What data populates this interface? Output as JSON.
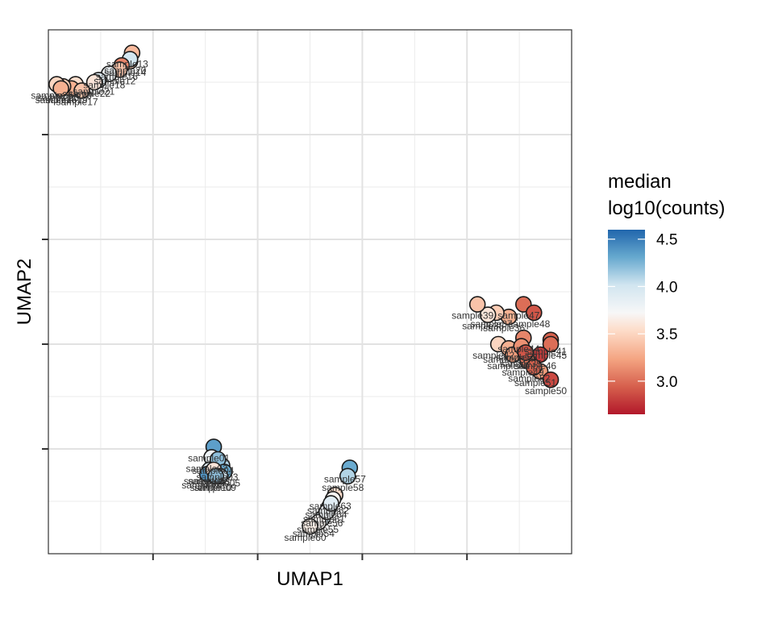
{
  "chart_data": {
    "type": "scatter",
    "title": "",
    "xlabel": "UMAP1",
    "ylabel": "UMAP2",
    "xlim": [
      -5,
      20
    ],
    "ylim": [
      -5,
      20
    ],
    "x_ticks": [
      0,
      5,
      10,
      15
    ],
    "y_ticks": [
      0,
      5,
      10,
      15
    ],
    "grid": true,
    "legend": {
      "title_line1": "median",
      "title_line2": "log10(counts)",
      "position": "right",
      "colorscale": "RdBu",
      "range": [
        2.65,
        4.6
      ],
      "ticks": [
        "4.5",
        "4.0",
        "3.5",
        "3.0"
      ],
      "tick_values": [
        4.5,
        4.0,
        3.5,
        3.0
      ]
    },
    "points": [
      {
        "x": -1.0,
        "y": 18.9,
        "v": 3.35,
        "label": "sample13"
      },
      {
        "x": -1.1,
        "y": 18.5,
        "v": 3.45,
        "label": "sample14"
      },
      {
        "x": -1.1,
        "y": 18.6,
        "v": 4.0,
        "label": "sample20"
      },
      {
        "x": -1.5,
        "y": 18.3,
        "v": 3.1,
        "label": "sample16"
      },
      {
        "x": -1.6,
        "y": 18.1,
        "v": 3.4,
        "label": "sample12"
      },
      {
        "x": -2.1,
        "y": 17.9,
        "v": 3.8,
        "label": "sample18"
      },
      {
        "x": -2.6,
        "y": 17.6,
        "v": 3.9,
        "label": "sample21"
      },
      {
        "x": -2.8,
        "y": 17.5,
        "v": 3.6,
        "label": "sample22"
      },
      {
        "x": -3.7,
        "y": 17.4,
        "v": 3.55,
        "label": "sample23"
      },
      {
        "x": -3.9,
        "y": 17.2,
        "v": 3.3,
        "label": "sample19"
      },
      {
        "x": -4.3,
        "y": 17.3,
        "v": 3.45,
        "label": "sample25"
      },
      {
        "x": -4.6,
        "y": 17.4,
        "v": 3.5,
        "label": "sample26"
      },
      {
        "x": -4.4,
        "y": 17.2,
        "v": 3.3,
        "label": "sample15"
      },
      {
        "x": -3.4,
        "y": 17.1,
        "v": 3.4,
        "label": "sample17"
      },
      {
        "x": 2.9,
        "y": 0.1,
        "v": 4.35,
        "label": "sample01"
      },
      {
        "x": 2.8,
        "y": -0.4,
        "v": 3.8,
        "label": "sample02"
      },
      {
        "x": 3.3,
        "y": -0.8,
        "v": 4.1,
        "label": "sample03"
      },
      {
        "x": 3.1,
        "y": -0.5,
        "v": 4.2,
        "label": "sample04"
      },
      {
        "x": 3.4,
        "y": -1.1,
        "v": 4.3,
        "label": "sample05"
      },
      {
        "x": 2.7,
        "y": -1.0,
        "v": 3.9,
        "label": "sample06"
      },
      {
        "x": 2.6,
        "y": -1.2,
        "v": 4.4,
        "label": "sample07"
      },
      {
        "x": 2.9,
        "y": -1.0,
        "v": 3.6,
        "label": "sample08"
      },
      {
        "x": 3.2,
        "y": -1.3,
        "v": 4.0,
        "label": "sample09"
      },
      {
        "x": 3.0,
        "y": -1.3,
        "v": 4.2,
        "label": "sample10"
      },
      {
        "x": 9.4,
        "y": -0.9,
        "v": 4.3,
        "label": "sample57"
      },
      {
        "x": 9.3,
        "y": -1.3,
        "v": 4.1,
        "label": "sample58"
      },
      {
        "x": 8.7,
        "y": -2.2,
        "v": 3.55,
        "label": "sample63"
      },
      {
        "x": 8.6,
        "y": -2.4,
        "v": 3.7,
        "label": "sample62"
      },
      {
        "x": 8.4,
        "y": -2.8,
        "v": 4.1,
        "label": "sample61"
      },
      {
        "x": 8.1,
        "y": -3.3,
        "v": 4.0,
        "label": "sample55"
      },
      {
        "x": 7.9,
        "y": -3.5,
        "v": 3.7,
        "label": "sample54"
      },
      {
        "x": 7.5,
        "y": -3.7,
        "v": 3.65,
        "label": "sample60"
      },
      {
        "x": 8.3,
        "y": -3.0,
        "v": 3.8,
        "label": "sample56"
      },
      {
        "x": 8.5,
        "y": -2.6,
        "v": 3.9,
        "label": "sample64"
      },
      {
        "x": 17.0,
        "y": 6.3,
        "v": 3.3,
        "label": "sample36"
      },
      {
        "x": 16.4,
        "y": 6.5,
        "v": 3.45,
        "label": "sample37"
      },
      {
        "x": 16.0,
        "y": 6.4,
        "v": 3.6,
        "label": "sample38"
      },
      {
        "x": 15.5,
        "y": 6.9,
        "v": 3.4,
        "label": "sample39"
      },
      {
        "x": 17.7,
        "y": 6.9,
        "v": 3.0,
        "label": "sample47"
      },
      {
        "x": 18.2,
        "y": 6.5,
        "v": 2.9,
        "label": "sample48"
      },
      {
        "x": 19.0,
        "y": 5.2,
        "v": 2.95,
        "label": "sample41"
      },
      {
        "x": 19.0,
        "y": 5.0,
        "v": 3.0,
        "label": "sample45"
      },
      {
        "x": 18.5,
        "y": 4.5,
        "v": 2.8,
        "label": "sample46"
      },
      {
        "x": 16.5,
        "y": 5.0,
        "v": 3.5,
        "label": "sample42"
      },
      {
        "x": 17.0,
        "y": 4.8,
        "v": 3.3,
        "label": "sample43"
      },
      {
        "x": 17.7,
        "y": 5.3,
        "v": 3.1,
        "label": "sample44"
      },
      {
        "x": 17.2,
        "y": 4.5,
        "v": 3.2,
        "label": "sample40"
      },
      {
        "x": 17.9,
        "y": 4.2,
        "v": 3.05,
        "label": "sample49"
      },
      {
        "x": 18.5,
        "y": 3.7,
        "v": 3.2,
        "label": "sample51"
      },
      {
        "x": 19.0,
        "y": 3.3,
        "v": 2.85,
        "label": "sample50"
      },
      {
        "x": 18.2,
        "y": 3.9,
        "v": 2.95,
        "label": "sample52"
      },
      {
        "x": 17.6,
        "y": 4.9,
        "v": 3.15,
        "label": "sample53"
      },
      {
        "x": 17.8,
        "y": 4.6,
        "v": 2.9,
        "label": "sample35"
      }
    ]
  }
}
